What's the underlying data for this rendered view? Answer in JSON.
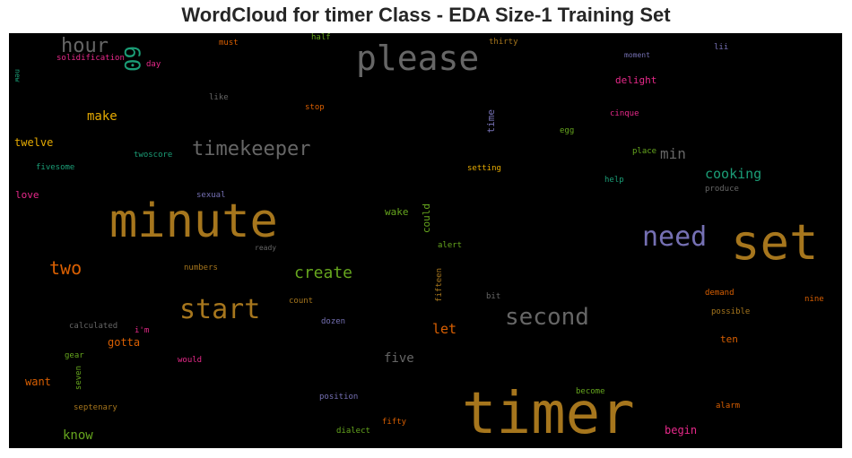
{
  "title": "WordCloud for timer Class - EDA Size-1 Training Set",
  "chart_data": {
    "type": "wordcloud",
    "title": "WordCloud for timer Class - EDA Size-1 Training Set",
    "background": "#000000",
    "palette": "Dark2",
    "words": [
      {
        "text": "timer",
        "color": "#a6761d",
        "orientation": "horizontal"
      },
      {
        "text": "minute",
        "color": "#a6761d",
        "orientation": "horizontal"
      },
      {
        "text": "set",
        "color": "#a6761d",
        "orientation": "horizontal"
      },
      {
        "text": "please",
        "color": "#666666",
        "orientation": "horizontal"
      },
      {
        "text": "start",
        "color": "#a6761d",
        "orientation": "horizontal"
      },
      {
        "text": "need",
        "color": "#7570b3",
        "orientation": "horizontal"
      },
      {
        "text": "second",
        "color": "#666666",
        "orientation": "horizontal"
      },
      {
        "text": "timekeeper",
        "color": "#666666",
        "orientation": "horizontal"
      },
      {
        "text": "hour",
        "color": "#666666",
        "orientation": "horizontal"
      },
      {
        "text": "60",
        "color": "#1b9e77",
        "orientation": "vertical"
      },
      {
        "text": "create",
        "color": "#66a61e",
        "orientation": "horizontal"
      },
      {
        "text": "two",
        "color": "#d95f02",
        "orientation": "horizontal"
      },
      {
        "text": "cooking",
        "color": "#1b9e77",
        "orientation": "horizontal"
      },
      {
        "text": "min",
        "color": "#666666",
        "orientation": "horizontal"
      },
      {
        "text": "make",
        "color": "#e6ab02",
        "orientation": "horizontal"
      },
      {
        "text": "let",
        "color": "#d95f02",
        "orientation": "horizontal"
      },
      {
        "text": "five",
        "color": "#666666",
        "orientation": "horizontal"
      },
      {
        "text": "know",
        "color": "#66a61e",
        "orientation": "horizontal"
      },
      {
        "text": "begin",
        "color": "#e7298a",
        "orientation": "horizontal"
      },
      {
        "text": "gotta",
        "color": "#d95f02",
        "orientation": "horizontal"
      },
      {
        "text": "want",
        "color": "#d95f02",
        "orientation": "horizontal"
      },
      {
        "text": "twelve",
        "color": "#e6ab02",
        "orientation": "horizontal"
      },
      {
        "text": "love",
        "color": "#e7298a",
        "orientation": "horizontal"
      },
      {
        "text": "wake",
        "color": "#66a61e",
        "orientation": "horizontal"
      },
      {
        "text": "ten",
        "color": "#d95f02",
        "orientation": "horizontal"
      },
      {
        "text": "delight",
        "color": "#e7298a",
        "orientation": "horizontal"
      },
      {
        "text": "could",
        "color": "#66a61e",
        "orientation": "vertical"
      },
      {
        "text": "time",
        "color": "#7570b3",
        "orientation": "vertical"
      },
      {
        "text": "must",
        "color": "#d95f02",
        "orientation": "horizontal"
      },
      {
        "text": "half",
        "color": "#66a61e",
        "orientation": "horizontal"
      },
      {
        "text": "thirty",
        "color": "#a6761d",
        "orientation": "horizontal"
      },
      {
        "text": "lii",
        "color": "#7570b3",
        "orientation": "horizontal"
      },
      {
        "text": "moment",
        "color": "#7570b3",
        "orientation": "horizontal"
      },
      {
        "text": "solidification",
        "color": "#e7298a",
        "orientation": "horizontal"
      },
      {
        "text": "day",
        "color": "#e7298a",
        "orientation": "horizontal"
      },
      {
        "text": "new",
        "color": "#1b9e77",
        "orientation": "vertical"
      },
      {
        "text": "like",
        "color": "#666666",
        "orientation": "horizontal"
      },
      {
        "text": "stop",
        "color": "#d95f02",
        "orientation": "horizontal"
      },
      {
        "text": "cinque",
        "color": "#e7298a",
        "orientation": "horizontal"
      },
      {
        "text": "egg",
        "color": "#66a61e",
        "orientation": "horizontal"
      },
      {
        "text": "place",
        "color": "#66a61e",
        "orientation": "horizontal"
      },
      {
        "text": "twoscore",
        "color": "#1b9e77",
        "orientation": "horizontal"
      },
      {
        "text": "fivesome",
        "color": "#1b9e77",
        "orientation": "horizontal"
      },
      {
        "text": "setting",
        "color": "#e6ab02",
        "orientation": "horizontal"
      },
      {
        "text": "help",
        "color": "#1b9e77",
        "orientation": "horizontal"
      },
      {
        "text": "produce",
        "color": "#666666",
        "orientation": "horizontal"
      },
      {
        "text": "sexual",
        "color": "#7570b3",
        "orientation": "horizontal"
      },
      {
        "text": "ready",
        "color": "#666666",
        "orientation": "horizontal"
      },
      {
        "text": "alert",
        "color": "#66a61e",
        "orientation": "horizontal"
      },
      {
        "text": "numbers",
        "color": "#a6761d",
        "orientation": "horizontal"
      },
      {
        "text": "fifteen",
        "color": "#a6761d",
        "orientation": "vertical"
      },
      {
        "text": "count",
        "color": "#a6761d",
        "orientation": "horizontal"
      },
      {
        "text": "bit",
        "color": "#666666",
        "orientation": "horizontal"
      },
      {
        "text": "demand",
        "color": "#d95f02",
        "orientation": "horizontal"
      },
      {
        "text": "nine",
        "color": "#d95f02",
        "orientation": "horizontal"
      },
      {
        "text": "possible",
        "color": "#a6761d",
        "orientation": "horizontal"
      },
      {
        "text": "dozen",
        "color": "#7570b3",
        "orientation": "horizontal"
      },
      {
        "text": "calculated",
        "color": "#666666",
        "orientation": "horizontal"
      },
      {
        "text": "i'm",
        "color": "#e7298a",
        "orientation": "horizontal"
      },
      {
        "text": "gear",
        "color": "#66a61e",
        "orientation": "horizontal"
      },
      {
        "text": "would",
        "color": "#e7298a",
        "orientation": "horizontal"
      },
      {
        "text": "seven",
        "color": "#66a61e",
        "orientation": "vertical"
      },
      {
        "text": "position",
        "color": "#7570b3",
        "orientation": "horizontal"
      },
      {
        "text": "become",
        "color": "#66a61e",
        "orientation": "horizontal"
      },
      {
        "text": "septenary",
        "color": "#a6761d",
        "orientation": "horizontal"
      },
      {
        "text": "alarm",
        "color": "#d95f02",
        "orientation": "horizontal"
      },
      {
        "text": "fifty",
        "color": "#d95f02",
        "orientation": "horizontal"
      },
      {
        "text": "dialect",
        "color": "#66a61e",
        "orientation": "horizontal"
      }
    ]
  }
}
